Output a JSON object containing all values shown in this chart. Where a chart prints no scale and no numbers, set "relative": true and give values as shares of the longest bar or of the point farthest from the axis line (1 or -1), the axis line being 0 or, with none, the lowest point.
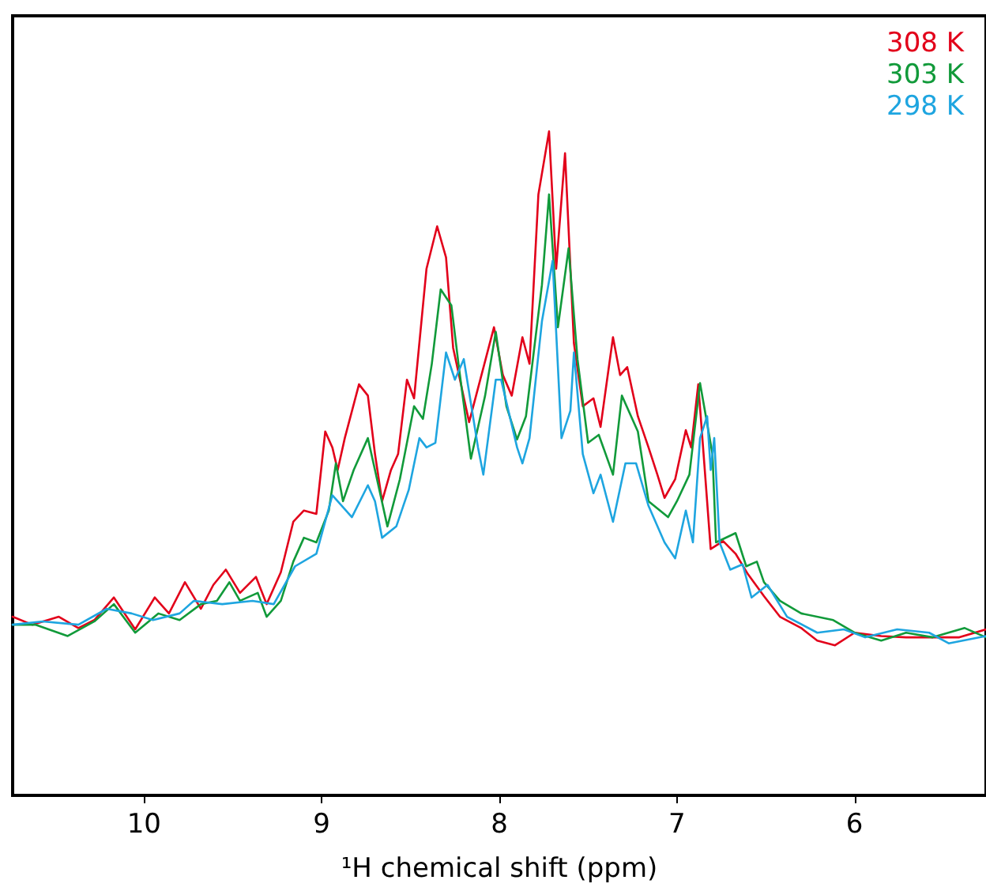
{
  "chart_data": {
    "type": "line",
    "relative": true,
    "xlabel": "¹H chemical shift (ppm)",
    "xlim": [
      10.74,
      5.26
    ],
    "xticks": [
      10,
      9,
      8,
      7,
      6
    ],
    "legend": "top right",
    "marker": "none",
    "series": [
      {
        "name": "308 K",
        "color": "#e2001a",
        "x": [
          10.74,
          10.63,
          10.48,
          10.37,
          10.28,
          10.17,
          10.05,
          9.94,
          9.86,
          9.77,
          9.68,
          9.61,
          9.54,
          9.46,
          9.37,
          9.31,
          9.23,
          9.16,
          9.1,
          9.03,
          8.98,
          8.94,
          8.91,
          8.87,
          8.79,
          8.74,
          8.7,
          8.66,
          8.61,
          8.57,
          8.52,
          8.48,
          8.41,
          8.35,
          8.3,
          8.26,
          8.17,
          8.03,
          7.98,
          7.93,
          7.87,
          7.83,
          7.78,
          7.72,
          7.68,
          7.63,
          7.58,
          7.53,
          7.47,
          7.43,
          7.36,
          7.32,
          7.28,
          7.22,
          7.16,
          7.11,
          7.07,
          7.01,
          6.95,
          6.92,
          6.88,
          6.85,
          6.81,
          6.74,
          6.67,
          6.6,
          6.51,
          6.42,
          6.3,
          6.21,
          6.11,
          6.0,
          5.85,
          5.71,
          5.56,
          5.41,
          5.26
        ],
        "values": [
          0.269,
          0.257,
          0.269,
          0.252,
          0.264,
          0.298,
          0.25,
          0.298,
          0.274,
          0.321,
          0.281,
          0.317,
          0.34,
          0.305,
          0.329,
          0.288,
          0.336,
          0.412,
          0.429,
          0.424,
          0.548,
          0.524,
          0.49,
          0.538,
          0.619,
          0.602,
          0.514,
          0.443,
          0.49,
          0.514,
          0.626,
          0.598,
          0.793,
          0.857,
          0.81,
          0.674,
          0.562,
          0.705,
          0.633,
          0.602,
          0.69,
          0.65,
          0.905,
          1.0,
          0.793,
          0.967,
          0.681,
          0.586,
          0.598,
          0.555,
          0.69,
          0.633,
          0.645,
          0.571,
          0.524,
          0.483,
          0.448,
          0.476,
          0.55,
          0.524,
          0.619,
          0.514,
          0.371,
          0.383,
          0.364,
          0.333,
          0.3,
          0.269,
          0.252,
          0.233,
          0.226,
          0.245,
          0.24,
          0.238,
          0.238,
          0.238,
          0.25
        ]
      },
      {
        "name": "303 K",
        "color": "#119a3a",
        "x": [
          10.74,
          10.61,
          10.43,
          10.28,
          10.17,
          10.05,
          9.92,
          9.8,
          9.68,
          9.59,
          9.52,
          9.46,
          9.36,
          9.31,
          9.23,
          9.16,
          9.1,
          9.03,
          8.96,
          8.92,
          8.88,
          8.82,
          8.74,
          8.7,
          8.63,
          8.56,
          8.48,
          8.43,
          8.38,
          8.33,
          8.27,
          8.23,
          8.16,
          8.08,
          8.02,
          7.96,
          7.9,
          7.85,
          7.76,
          7.72,
          7.67,
          7.61,
          7.56,
          7.5,
          7.44,
          7.36,
          7.31,
          7.22,
          7.16,
          7.05,
          7.0,
          6.93,
          6.87,
          6.8,
          6.78,
          6.67,
          6.61,
          6.55,
          6.51,
          6.42,
          6.3,
          6.12,
          6.0,
          5.85,
          5.71,
          5.56,
          5.38,
          5.26
        ],
        "values": [
          0.257,
          0.257,
          0.24,
          0.262,
          0.288,
          0.245,
          0.274,
          0.264,
          0.288,
          0.293,
          0.321,
          0.293,
          0.305,
          0.269,
          0.293,
          0.352,
          0.388,
          0.381,
          0.429,
          0.5,
          0.443,
          0.49,
          0.538,
          0.49,
          0.405,
          0.476,
          0.586,
          0.567,
          0.65,
          0.762,
          0.738,
          0.65,
          0.507,
          0.602,
          0.698,
          0.586,
          0.536,
          0.571,
          0.769,
          0.905,
          0.705,
          0.824,
          0.657,
          0.531,
          0.543,
          0.483,
          0.602,
          0.548,
          0.443,
          0.419,
          0.443,
          0.483,
          0.621,
          0.514,
          0.381,
          0.395,
          0.345,
          0.352,
          0.321,
          0.293,
          0.274,
          0.264,
          0.245,
          0.233,
          0.245,
          0.238,
          0.252,
          0.238
        ]
      },
      {
        "name": "298 K",
        "color": "#1ea5e0",
        "x": [
          10.74,
          10.57,
          10.37,
          10.21,
          10.07,
          9.95,
          9.8,
          9.72,
          9.56,
          9.39,
          9.27,
          9.15,
          9.03,
          8.94,
          8.83,
          8.74,
          8.7,
          8.66,
          8.58,
          8.51,
          8.45,
          8.41,
          8.36,
          8.3,
          8.25,
          8.2,
          8.12,
          8.09,
          8.02,
          7.99,
          7.9,
          7.87,
          7.83,
          7.76,
          7.7,
          7.65,
          7.6,
          7.58,
          7.53,
          7.47,
          7.43,
          7.36,
          7.29,
          7.23,
          7.16,
          7.07,
          7.01,
          6.95,
          6.91,
          6.87,
          6.83,
          6.81,
          6.79,
          6.76,
          6.7,
          6.63,
          6.58,
          6.49,
          6.38,
          6.21,
          6.06,
          5.94,
          5.76,
          5.58,
          5.47,
          5.26
        ],
        "values": [
          0.257,
          0.262,
          0.257,
          0.281,
          0.274,
          0.264,
          0.274,
          0.293,
          0.288,
          0.293,
          0.288,
          0.345,
          0.364,
          0.452,
          0.419,
          0.467,
          0.443,
          0.388,
          0.405,
          0.46,
          0.538,
          0.524,
          0.531,
          0.667,
          0.626,
          0.657,
          0.524,
          0.483,
          0.626,
          0.626,
          0.524,
          0.5,
          0.538,
          0.714,
          0.805,
          0.538,
          0.579,
          0.667,
          0.514,
          0.455,
          0.483,
          0.412,
          0.5,
          0.5,
          0.436,
          0.381,
          0.357,
          0.429,
          0.381,
          0.538,
          0.571,
          0.49,
          0.538,
          0.381,
          0.34,
          0.348,
          0.298,
          0.317,
          0.269,
          0.245,
          0.25,
          0.238,
          0.25,
          0.245,
          0.229,
          0.24
        ]
      }
    ]
  }
}
